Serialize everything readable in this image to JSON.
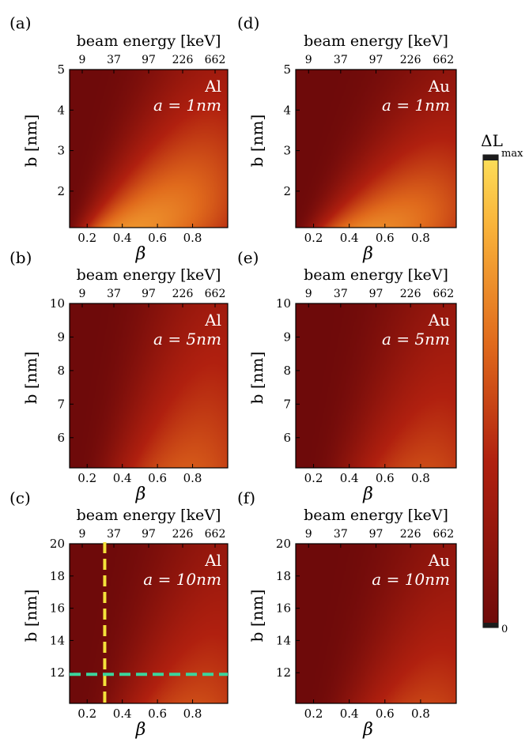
{
  "figure": {
    "x_top_label": "beam energy [keV]",
    "x_top_ticks": [
      "9",
      "37",
      "97",
      "226",
      "662"
    ],
    "x_bottom_label": "β",
    "x_bottom_ticks": [
      "0.2",
      "0.4",
      "0.6",
      "0.8"
    ],
    "y_label": "b [nm]",
    "colorbar": {
      "title": "ΔL",
      "max_label": "max",
      "min_label": "0"
    },
    "colors": {
      "bright": "#fde05a",
      "mid": "#e36a1e",
      "dark": "#7c0a0c",
      "marker_yellow": "#f4e23a",
      "marker_green": "#3cd49c"
    }
  },
  "chart_data": [
    {
      "panel": "(a)",
      "type": "heatmap",
      "material": "Al",
      "param": "a = 1nm",
      "ylim": [
        1.1,
        5
      ],
      "yticks": [
        "2",
        "3",
        "4",
        "5"
      ],
      "xlim": [
        0.1,
        1.0
      ],
      "lengthscale": 2.0
    },
    {
      "panel": "(b)",
      "type": "heatmap",
      "material": "Al",
      "param": "a = 5nm",
      "ylim": [
        5.1,
        10
      ],
      "yticks": [
        "6",
        "7",
        "8",
        "9",
        "10"
      ],
      "xlim": [
        0.1,
        1.0
      ],
      "lengthscale": 4.0
    },
    {
      "panel": "(c)",
      "type": "heatmap",
      "material": "Al",
      "param": "a = 10nm",
      "ylim": [
        10.1,
        20
      ],
      "yticks": [
        "12",
        "14",
        "16",
        "18",
        "20"
      ],
      "xlim": [
        0.1,
        1.0
      ],
      "lengthscale": 7.0,
      "markers": {
        "vertical_beta": 0.3,
        "horizontal_b": 11.9
      }
    },
    {
      "panel": "(d)",
      "type": "heatmap",
      "material": "Au",
      "param": "a = 1nm",
      "ylim": [
        1.1,
        5
      ],
      "yticks": [
        "2",
        "3",
        "4",
        "5"
      ],
      "xlim": [
        0.1,
        1.0
      ],
      "lengthscale": 1.6
    },
    {
      "panel": "(e)",
      "type": "heatmap",
      "material": "Au",
      "param": "a = 5nm",
      "ylim": [
        5.1,
        10
      ],
      "yticks": [
        "6",
        "7",
        "8",
        "9",
        "10"
      ],
      "xlim": [
        0.1,
        1.0
      ],
      "lengthscale": 3.5
    },
    {
      "panel": "(f)",
      "type": "heatmap",
      "material": "Au",
      "param": "a = 10nm",
      "ylim": [
        10.1,
        20
      ],
      "yticks": [
        "12",
        "14",
        "16",
        "18",
        "20"
      ],
      "xlim": [
        0.1,
        1.0
      ],
      "lengthscale": 6.5
    }
  ]
}
